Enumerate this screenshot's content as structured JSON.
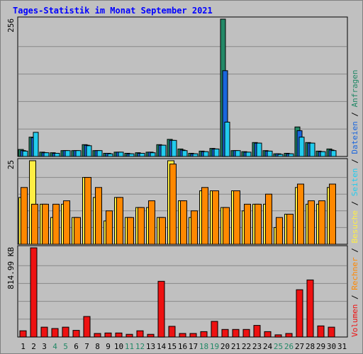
{
  "chart_data": {
    "type": "bar",
    "title": "Tages-Statistik im Monat September 2021",
    "x": [
      "1",
      "2",
      "3",
      "4",
      "5",
      "6",
      "7",
      "8",
      "9",
      "10",
      "11",
      "12",
      "13",
      "14",
      "15",
      "16",
      "17",
      "18",
      "19",
      "20",
      "21",
      "22",
      "23",
      "24",
      "25",
      "26",
      "27",
      "28",
      "29",
      "30",
      "31"
    ],
    "weekend_days": [
      "4",
      "5",
      "11",
      "12",
      "18",
      "19",
      "25",
      "26"
    ],
    "weekend_color": "#228866",
    "weekday_color": "#000000",
    "panels": [
      {
        "scale_label": "256",
        "ymax": 256,
        "series": [
          {
            "name": "Anfragen",
            "color": "#228866",
            "values": [
              13,
              36,
              8,
              7,
              11,
              11,
              22,
              11,
              6,
              8,
              6,
              7,
              8,
              22,
              32,
              14,
              6,
              10,
              15,
              256,
              11,
              9,
              26,
              11,
              5,
              6,
              55,
              26,
              10,
              14,
              null
            ]
          },
          {
            "name": "Dateien",
            "color": "#1a66dd",
            "values": [
              11,
              35,
              7,
              6,
              11,
              11,
              21,
              11,
              6,
              8,
              5,
              6,
              8,
              21,
              30,
              12,
              5,
              9,
              14,
              160,
              11,
              8,
              25,
              10,
              5,
              5,
              48,
              25,
              9,
              12,
              null
            ]
          },
          {
            "name": "Seiten",
            "color": "#22ccee",
            "values": [
              10,
              45,
              7,
              6,
              11,
              11,
              20,
              11,
              5,
              8,
              5,
              6,
              7,
              21,
              30,
              11,
              5,
              9,
              14,
              64,
              11,
              8,
              25,
              10,
              4,
              5,
              36,
              25,
              9,
              11,
              null
            ]
          }
        ]
      },
      {
        "scale_label": "25",
        "ymax": 25,
        "series": [
          {
            "name": "Besuche",
            "color": "#ffee44",
            "values": [
              14,
              25,
              12,
              8,
              12,
              8,
              20,
              14,
              7,
              14,
              8,
              11,
              11,
              8,
              25,
              13,
              8,
              16,
              16,
              11,
              16,
              10,
              12,
              12,
              5,
              9,
              17,
              12,
              12,
              17,
              null
            ]
          },
          {
            "name": "Rechner",
            "color": "#ff8800",
            "values": [
              17,
              12,
              12,
              12,
              13,
              8,
              20,
              17,
              10,
              14,
              8,
              11,
              13,
              8,
              24,
              13,
              10,
              17,
              16,
              11,
              16,
              12,
              12,
              15,
              8,
              9,
              18,
              13,
              13,
              18,
              null
            ]
          }
        ]
      },
      {
        "scale_label": "814.99 KB",
        "ymax": 1000,
        "series": [
          {
            "name": "Volumen",
            "color": "#ee1111",
            "values": [
              70,
              1000,
              110,
              95,
              110,
              75,
              230,
              40,
              45,
              45,
              30,
              70,
              30,
              625,
              120,
              40,
              40,
              60,
              175,
              85,
              85,
              85,
              130,
              60,
              25,
              40,
              530,
              640,
              125,
              110,
              null
            ]
          }
        ]
      }
    ],
    "legend": [
      {
        "label": "Volumen",
        "color": "#ee1111"
      },
      {
        "label": "Rechner",
        "color": "#ff8800"
      },
      {
        "label": "Besuche",
        "color": "#ffee44"
      },
      {
        "label": "Seiten",
        "color": "#22ccee"
      },
      {
        "label": "Dateien",
        "color": "#1a66dd"
      },
      {
        "label": "Anfragen",
        "color": "#228866"
      }
    ],
    "legend_separator": " / "
  }
}
